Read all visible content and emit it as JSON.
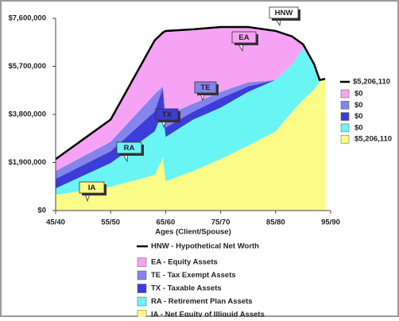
{
  "chart_data": {
    "type": "stacked-area",
    "x_label": "Ages (Client/Spouse)",
    "x": [
      45,
      55,
      63,
      64.5,
      65,
      70,
      75,
      80,
      85,
      88,
      90,
      92,
      93,
      94
    ],
    "xlim": [
      45,
      95
    ],
    "xticks": [
      {
        "value": 45,
        "label": "45/40"
      },
      {
        "value": 55,
        "label": "55/50"
      },
      {
        "value": 65,
        "label": "65/60"
      },
      {
        "value": 75,
        "label": "75/70"
      },
      {
        "value": 85,
        "label": "85/80"
      },
      {
        "value": 95,
        "label": "95/90"
      }
    ],
    "ylim": [
      0,
      7600000
    ],
    "yticks": [
      {
        "value": 0,
        "label": "$0"
      },
      {
        "value": 1900000,
        "label": "$1,900,000"
      },
      {
        "value": 3800000,
        "label": "$3,800,000"
      },
      {
        "value": 5700000,
        "label": "$5,700,000"
      },
      {
        "value": 7600000,
        "label": "$7,600,000"
      }
    ],
    "line": {
      "name": "HNW - Hypothetical Net Worth",
      "short": "HNW",
      "color": "#000000",
      "end_label": "$5,206,110",
      "values": [
        2033000,
        3596000,
        6724000,
        7037000,
        7099000,
        7163000,
        7256000,
        7256000,
        7100000,
        6882000,
        6568000,
        5786000,
        5161000,
        5206110
      ]
    },
    "series": [
      {
        "name": "EA - Equity Assets",
        "short": "EA",
        "color": "#f7a3f5",
        "end_label": "$0",
        "values": [
          469000,
          876000,
          2127000,
          2127000,
          3347000,
          2940000,
          2565000,
          2189000,
          1939000,
          1095000,
          156000,
          0,
          0,
          0
        ]
      },
      {
        "name": "TE - Tax Exempt Assets",
        "short": "TE",
        "color": "#8484ec",
        "end_label": "$0",
        "values": [
          313000,
          375000,
          688000,
          63000,
          469000,
          313000,
          250000,
          156000,
          0,
          0,
          0,
          0,
          0,
          0
        ]
      },
      {
        "name": "TX - Taxable Assets",
        "short": "TX",
        "color": "#3c3cd8",
        "end_label": "$0",
        "values": [
          375000,
          469000,
          782000,
          938000,
          375000,
          313000,
          375000,
          219000,
          0,
          0,
          0,
          0,
          0,
          0
        ]
      },
      {
        "name": "RA - Retirement Plan Assets",
        "short": "RA",
        "color": "#6af5f5",
        "end_label": "$0",
        "values": [
          250000,
          938000,
          1720000,
          1814000,
          1751000,
          2033000,
          2033000,
          2127000,
          2033000,
          1877000,
          2033000,
          1001000,
          63000,
          0
        ]
      },
      {
        "name": "IA - Net Equity of Illiquid Assets",
        "short": "IA",
        "color": "#fbfb88",
        "end_label": "$5,206,110",
        "values": [
          626000,
          938000,
          1407000,
          2095000,
          1157000,
          1564000,
          2033000,
          2565000,
          3128000,
          3910000,
          4379000,
          4785000,
          5098000,
          5206110
        ]
      }
    ]
  }
}
